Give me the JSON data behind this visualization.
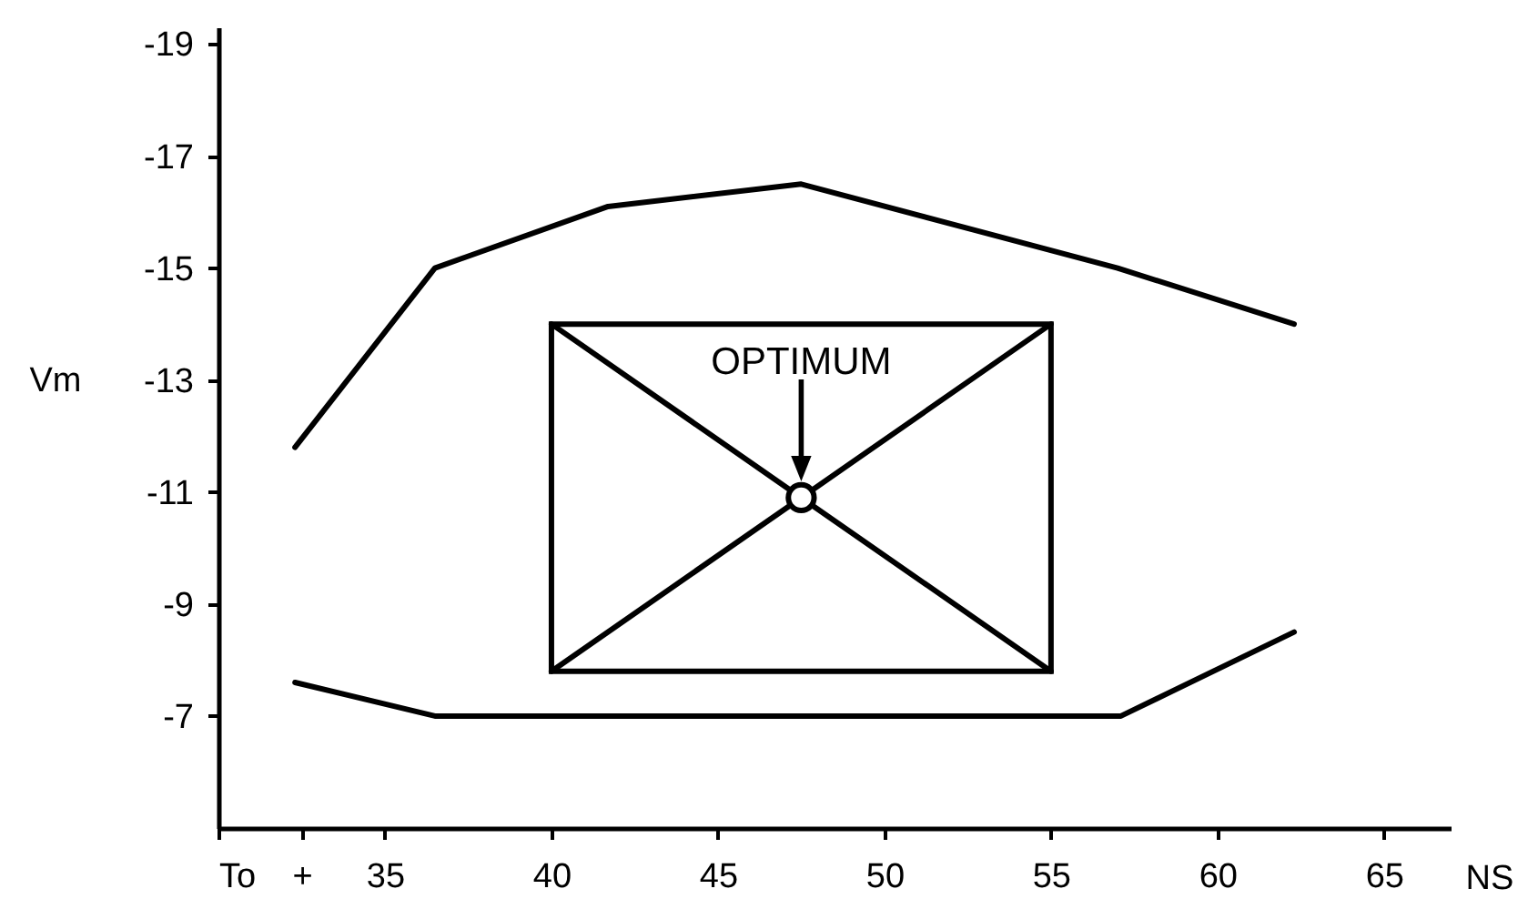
{
  "chart_data": {
    "type": "line",
    "xlabel": "NS",
    "ylabel": "Vm",
    "xlim": [
      30,
      67
    ],
    "ylim": [
      -5,
      -19.3
    ],
    "xticks": [
      {
        "value": 30,
        "label": "To"
      },
      {
        "value": 32.5,
        "label": "+"
      },
      35,
      40,
      45,
      50,
      55,
      60,
      65
    ],
    "yticks": [
      -19,
      -17,
      -15,
      -13,
      -11,
      -9,
      -7
    ],
    "series": [
      {
        "color": "#000000",
        "x": [
          32.3,
          36.5,
          41.7,
          47.5,
          57,
          62.3
        ],
        "values": [
          -11.8,
          -15,
          -16.1,
          -16.5,
          -15,
          -14
        ]
      },
      {
        "color": "#000000",
        "x": [
          32.3,
          36.5,
          57.1,
          62.3
        ],
        "values": [
          -7.6,
          -7,
          -7,
          -8.5
        ]
      },
      {
        "color": "#000000",
        "x": [
          40,
          47.5,
          55
        ],
        "values": [
          -14,
          -10.9,
          -14
        ]
      },
      {
        "color": "#000000",
        "x": [
          40,
          47.5,
          55
        ],
        "values": [
          -7.8,
          -10.9,
          -7.8
        ]
      },
      {
        "type": "scatter",
        "color": "#000000",
        "marker": "circle",
        "x": [
          47.5
        ],
        "values": [
          -10.9
        ]
      }
    ],
    "annotations": [
      "OPTIMUM"
    ]
  }
}
